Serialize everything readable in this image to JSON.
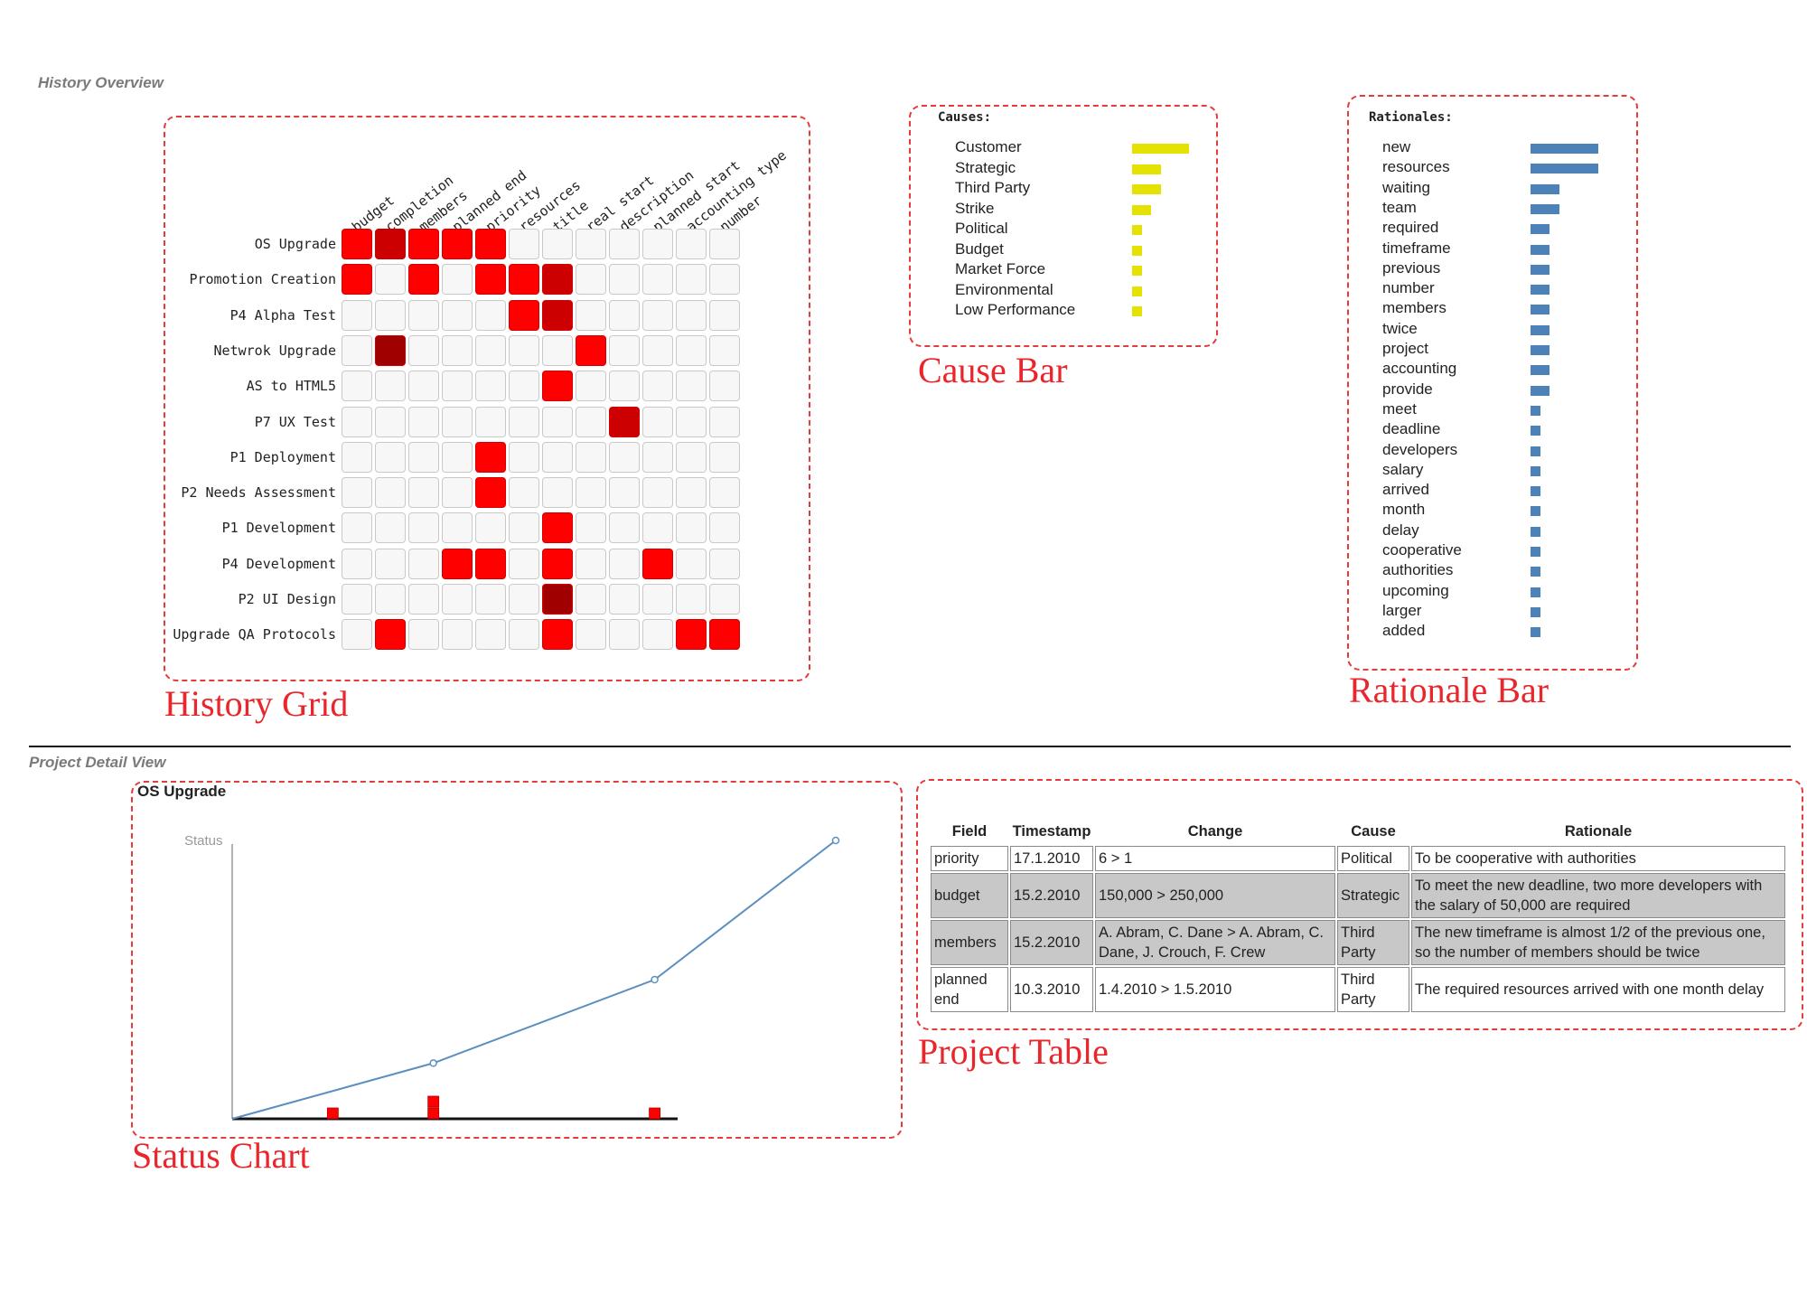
{
  "sections": {
    "history_overview": "History Overview",
    "project_detail": "Project Detail View"
  },
  "captions": {
    "history_grid": "History Grid",
    "cause_bar": "Cause Bar",
    "rationale_bar": "Rationale Bar",
    "status_chart": "Status Chart",
    "project_table": "Project Table"
  },
  "history_grid": {
    "columns": [
      "budget",
      "completion",
      "members",
      "planned end",
      "priority",
      "resources",
      "title",
      "real start",
      "description",
      "planned start",
      "accounting type",
      "number"
    ],
    "rows": [
      {
        "label": "OS Upgrade",
        "cells": [
          1,
          2,
          1,
          1,
          1,
          0,
          0,
          0,
          0,
          0,
          0,
          0
        ]
      },
      {
        "label": "Promotion Creation",
        "cells": [
          1,
          0,
          1,
          0,
          1,
          1,
          2,
          0,
          0,
          0,
          0,
          0
        ]
      },
      {
        "label": "P4 Alpha Test",
        "cells": [
          0,
          0,
          0,
          0,
          0,
          1,
          2,
          0,
          0,
          0,
          0,
          0
        ]
      },
      {
        "label": "Netwrok Upgrade",
        "cells": [
          0,
          3,
          0,
          0,
          0,
          0,
          0,
          1,
          0,
          0,
          0,
          0
        ]
      },
      {
        "label": "AS to HTML5",
        "cells": [
          0,
          0,
          0,
          0,
          0,
          0,
          1,
          0,
          0,
          0,
          0,
          0
        ]
      },
      {
        "label": "P7 UX Test",
        "cells": [
          0,
          0,
          0,
          0,
          0,
          0,
          0,
          0,
          2,
          0,
          0,
          0
        ]
      },
      {
        "label": "P1 Deployment",
        "cells": [
          0,
          0,
          0,
          0,
          1,
          0,
          0,
          0,
          0,
          0,
          0,
          0
        ]
      },
      {
        "label": "P2 Needs Assessment",
        "cells": [
          0,
          0,
          0,
          0,
          1,
          0,
          0,
          0,
          0,
          0,
          0,
          0
        ]
      },
      {
        "label": "P1 Development",
        "cells": [
          0,
          0,
          0,
          0,
          0,
          0,
          1,
          0,
          0,
          0,
          0,
          0
        ]
      },
      {
        "label": "P4 Development",
        "cells": [
          0,
          0,
          0,
          1,
          1,
          0,
          1,
          0,
          0,
          1,
          0,
          0
        ]
      },
      {
        "label": "P2 UI Design",
        "cells": [
          0,
          0,
          0,
          0,
          0,
          0,
          3,
          0,
          0,
          0,
          0,
          0
        ]
      },
      {
        "label": "Upgrade QA Protocols",
        "cells": [
          0,
          1,
          0,
          0,
          0,
          0,
          1,
          0,
          0,
          0,
          1,
          1
        ]
      }
    ],
    "colors": {
      "0": "#f7f7f7",
      "1": "#ff0000",
      "2": "#cc0000",
      "3": "#a00000"
    }
  },
  "causes": {
    "heading": "Causes:",
    "color": "#e5e100",
    "items": [
      {
        "label": "Customer",
        "value": 6
      },
      {
        "label": "Strategic",
        "value": 3
      },
      {
        "label": "Third Party",
        "value": 3
      },
      {
        "label": "Strike",
        "value": 2
      },
      {
        "label": "Political",
        "value": 1
      },
      {
        "label": "Budget",
        "value": 1
      },
      {
        "label": "Market Force",
        "value": 1
      },
      {
        "label": "Environmental",
        "value": 1
      },
      {
        "label": "Low Performance",
        "value": 1
      }
    ]
  },
  "rationales": {
    "heading": "Rationales:",
    "color": "#4c82b8",
    "items": [
      {
        "label": "new",
        "value": 7
      },
      {
        "label": "resources",
        "value": 7
      },
      {
        "label": "waiting",
        "value": 3
      },
      {
        "label": "team",
        "value": 3
      },
      {
        "label": "required",
        "value": 2
      },
      {
        "label": "timeframe",
        "value": 2
      },
      {
        "label": "previous",
        "value": 2
      },
      {
        "label": "number",
        "value": 2
      },
      {
        "label": "members",
        "value": 2
      },
      {
        "label": "twice",
        "value": 2
      },
      {
        "label": "project",
        "value": 2
      },
      {
        "label": "accounting",
        "value": 2
      },
      {
        "label": "provide",
        "value": 2
      },
      {
        "label": "meet",
        "value": 1
      },
      {
        "label": "deadline",
        "value": 1
      },
      {
        "label": "developers",
        "value": 1
      },
      {
        "label": "salary",
        "value": 1
      },
      {
        "label": "arrived",
        "value": 1
      },
      {
        "label": "month",
        "value": 1
      },
      {
        "label": "delay",
        "value": 1
      },
      {
        "label": "cooperative",
        "value": 1
      },
      {
        "label": "authorities",
        "value": 1
      },
      {
        "label": "upcoming",
        "value": 1
      },
      {
        "label": "larger",
        "value": 1
      },
      {
        "label": "added",
        "value": 1
      }
    ]
  },
  "status_chart": {
    "title": "OS Upgrade",
    "ylabel": "Status",
    "chart_data": {
      "type": "line",
      "x": [
        0,
        1,
        2.1,
        3
      ],
      "y": [
        0,
        20,
        50,
        100
      ],
      "xlim": [
        0,
        3
      ],
      "ylim": [
        0,
        100
      ],
      "line_color": "#5b8fc0",
      "markers": [
        {
          "x": 0.5,
          "height": 1,
          "color": "#ff0000"
        },
        {
          "x": 1.0,
          "height": 2,
          "color": "#ff0000"
        },
        {
          "x": 2.1,
          "height": 1,
          "color": "#ff0000"
        }
      ]
    }
  },
  "project_table": {
    "headers": [
      "Field",
      "Timestamp",
      "Change",
      "Cause",
      "Rationale"
    ],
    "rows": [
      {
        "field": "priority",
        "timestamp": "17.1.2010",
        "change": "6 > 1",
        "cause": "Political",
        "rationale": "To be cooperative with authorities",
        "shade": false
      },
      {
        "field": "budget",
        "timestamp": "15.2.2010",
        "change": "150,000 > 250,000",
        "cause": "Strategic",
        "rationale": "To meet the new deadline, two more developers with the salary of 50,000 are required",
        "shade": true
      },
      {
        "field": "members",
        "timestamp": "15.2.2010",
        "change": "A. Abram, C. Dane > A. Abram, C. Dane, J. Crouch, F. Crew",
        "cause": "Third Party",
        "rationale": "The new timeframe is almost 1/2 of the previous one, so the number of members should be twice",
        "shade": true
      },
      {
        "field": "planned end",
        "timestamp": "10.3.2010",
        "change": "1.4.2010 > 1.5.2010",
        "cause": "Third Party",
        "rationale": "The required resources arrived with one month delay",
        "shade": false
      }
    ]
  }
}
